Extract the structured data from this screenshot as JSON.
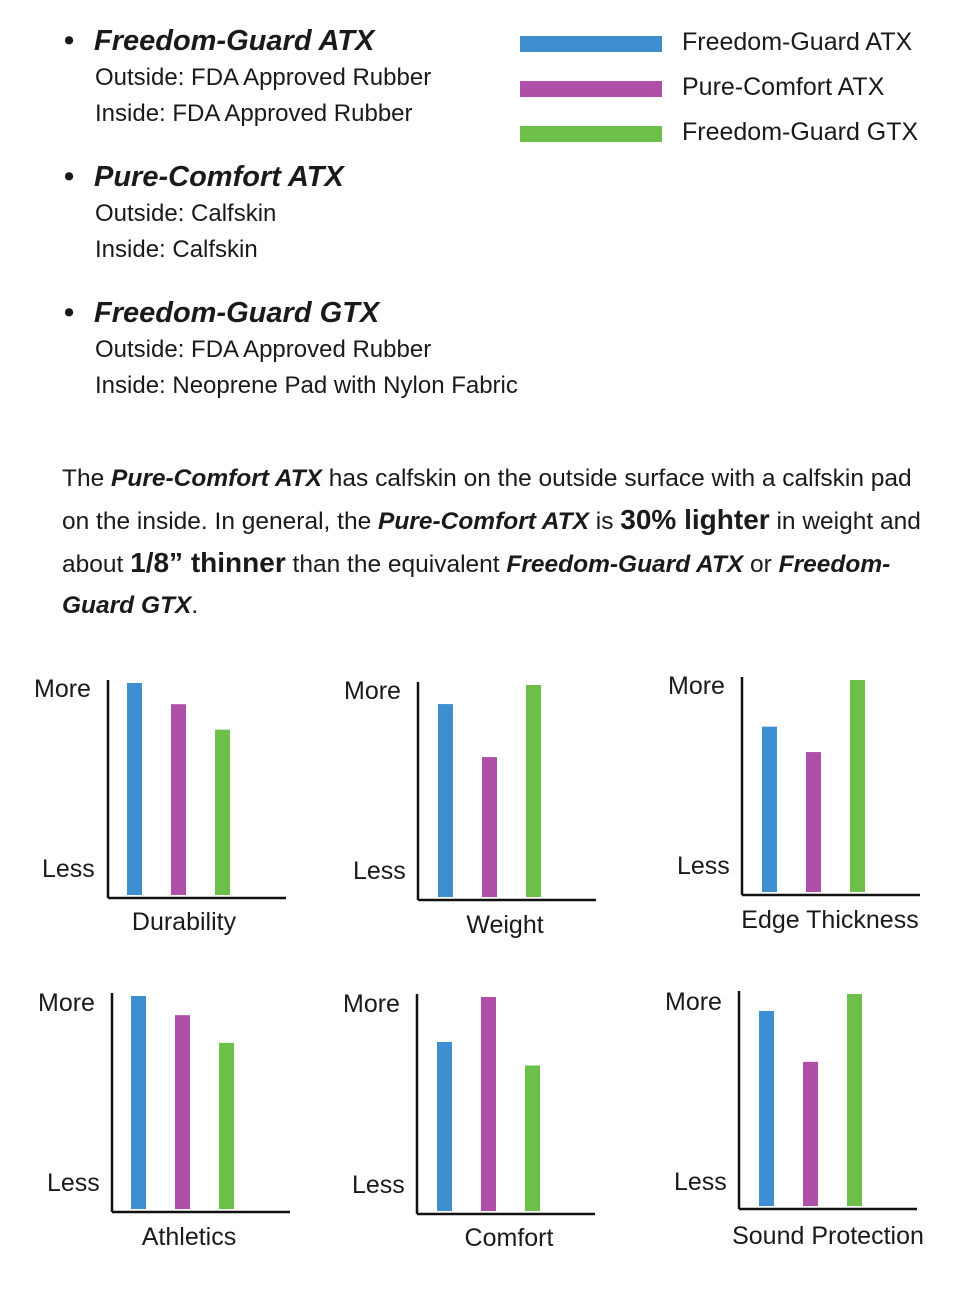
{
  "products": [
    {
      "name": "Freedom-Guard ATX",
      "outside": "Outside: FDA Approved Rubber",
      "inside": "Inside: FDA Approved Rubber"
    },
    {
      "name": "Pure-Comfort ATX",
      "outside": "Outside: Calfskin",
      "inside": "Inside: Calfskin"
    },
    {
      "name": "Freedom-Guard GTX",
      "outside": "Outside: FDA Approved Rubber",
      "inside": "Inside: Neoprene Pad with Nylon Fabric"
    }
  ],
  "legend": [
    {
      "label": "Freedom-Guard ATX",
      "color": "#3d8fd1"
    },
    {
      "label": "Pure-Comfort ATX",
      "color": "#b04fa8"
    },
    {
      "label": "Freedom-Guard GTX",
      "color": "#6cc04a"
    }
  ],
  "summary": {
    "p1": "The ",
    "p2": "Pure-Comfort ATX",
    "p3": " has calfskin on the outside surface with a calfskin pad on the inside.  In general, the ",
    "p4": "Pure-Comfort ATX",
    "p5": " is ",
    "p6": "30% lighter",
    "p7": " in weight and about ",
    "p8": "1/8” thinner",
    "p9": " than the equivalent ",
    "p10": "Freedom-Guard ATX",
    "p11": " or ",
    "p12": "Freedom-Guard GTX",
    "p13": "."
  },
  "chart_data": [
    {
      "type": "bar",
      "title": "Durability",
      "ymax_label": "More",
      "ymin_label": "Less",
      "ylim": [
        0,
        100
      ],
      "series": [
        {
          "name": "Freedom-Guard ATX",
          "value": 100
        },
        {
          "name": "Pure-Comfort ATX",
          "value": 90
        },
        {
          "name": "Freedom-Guard GTX",
          "value": 78
        }
      ]
    },
    {
      "type": "bar",
      "title": "Weight",
      "ymax_label": "More",
      "ymin_label": "Less",
      "ylim": [
        0,
        100
      ],
      "series": [
        {
          "name": "Freedom-Guard ATX",
          "value": 91
        },
        {
          "name": "Pure-Comfort ATX",
          "value": 66
        },
        {
          "name": "Freedom-Guard GTX",
          "value": 100
        }
      ]
    },
    {
      "type": "bar",
      "title": "Edge Thickness",
      "ymax_label": "More",
      "ymin_label": "Less",
      "ylim": [
        0,
        100
      ],
      "series": [
        {
          "name": "Freedom-Guard ATX",
          "value": 78
        },
        {
          "name": "Pure-Comfort ATX",
          "value": 66
        },
        {
          "name": "Freedom-Guard GTX",
          "value": 100
        }
      ]
    },
    {
      "type": "bar",
      "title": "Athletics",
      "ymax_label": "More",
      "ymin_label": "Less",
      "ylim": [
        0,
        100
      ],
      "series": [
        {
          "name": "Freedom-Guard ATX",
          "value": 100
        },
        {
          "name": "Pure-Comfort ATX",
          "value": 91
        },
        {
          "name": "Freedom-Guard GTX",
          "value": 78
        }
      ]
    },
    {
      "type": "bar",
      "title": "Comfort",
      "ymax_label": "More",
      "ymin_label": "Less",
      "ylim": [
        0,
        100
      ],
      "series": [
        {
          "name": "Freedom-Guard ATX",
          "value": 79
        },
        {
          "name": "Pure-Comfort ATX",
          "value": 100
        },
        {
          "name": "Freedom-Guard GTX",
          "value": 68
        }
      ]
    },
    {
      "type": "bar",
      "title": "Sound Protection",
      "ymax_label": "More",
      "ymin_label": "Less",
      "ylim": [
        0,
        100
      ],
      "series": [
        {
          "name": "Freedom-Guard ATX",
          "value": 92
        },
        {
          "name": "Pure-Comfort ATX",
          "value": 68
        },
        {
          "name": "Freedom-Guard GTX",
          "value": 100
        }
      ]
    }
  ]
}
